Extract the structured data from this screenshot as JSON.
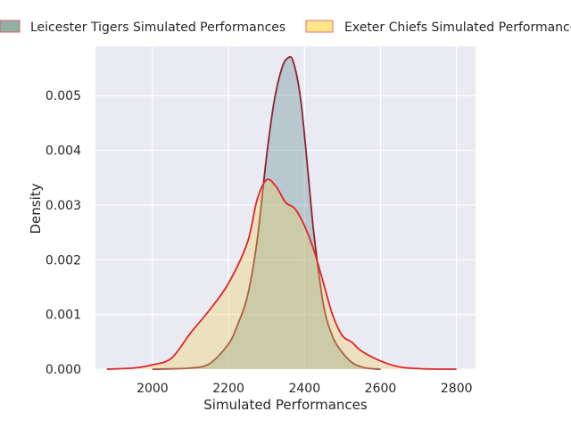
{
  "chart_data": {
    "type": "area",
    "xlabel": "Simulated Performances",
    "ylabel": "Density",
    "xlim": [
      1850,
      2850
    ],
    "ylim": [
      0,
      0.0059
    ],
    "xticks": [
      2000,
      2200,
      2400,
      2600,
      2800
    ],
    "xtick_labels": [
      "2000",
      "2200",
      "2400",
      "2600",
      "2800"
    ],
    "yticks": [
      0,
      0.001,
      0.002,
      0.003,
      0.004,
      0.005
    ],
    "ytick_labels": [
      "0.000",
      "0.001",
      "0.002",
      "0.003",
      "0.004",
      "0.005"
    ],
    "grid": true,
    "background": "#eaeaf2",
    "legend_placement": "top",
    "series": [
      {
        "name": "Leicester Tigers Simulated Performances",
        "fill": "#5f8a8b",
        "fill_opacity": 0.35,
        "line": "#8b2232",
        "legend_fill": "#8fb0a4",
        "legend_edge": "#e05a6a",
        "x": [
          2000,
          2100,
          2150,
          2200,
          2225,
          2250,
          2275,
          2300,
          2320,
          2340,
          2355,
          2370,
          2390,
          2410,
          2425,
          2450,
          2475,
          2500,
          2525,
          2550,
          2575,
          2600
        ],
        "y": [
          0.0,
          2e-05,
          0.0001,
          0.00046,
          0.00083,
          0.00134,
          0.00233,
          0.00388,
          0.00489,
          0.00549,
          0.00568,
          0.00563,
          0.00493,
          0.00354,
          0.00246,
          0.00117,
          0.00058,
          0.0003,
          0.00012,
          4e-05,
          1e-05,
          0.0
        ]
      },
      {
        "name": "Exeter Chiefs Simulated Performances",
        "fill": "#f0d060",
        "fill_opacity": 0.35,
        "line": "#e0252a",
        "legend_fill": "#ffe58a",
        "legend_edge": "#e07070",
        "x": [
          1880,
          1950,
          2000,
          2050,
          2100,
          2150,
          2200,
          2250,
          2275,
          2300,
          2325,
          2350,
          2375,
          2400,
          2425,
          2450,
          2475,
          2500,
          2525,
          2550,
          2600,
          2650,
          2700,
          2750,
          2800
        ],
        "y": [
          0.0,
          2e-05,
          8e-05,
          0.0002,
          0.00066,
          0.00108,
          0.00157,
          0.00232,
          0.00309,
          0.00346,
          0.00334,
          0.00305,
          0.00293,
          0.00262,
          0.00217,
          0.00157,
          0.00097,
          0.00061,
          0.00049,
          0.00033,
          0.00015,
          4e-05,
          1e-05,
          0.0,
          0.0
        ]
      }
    ]
  }
}
